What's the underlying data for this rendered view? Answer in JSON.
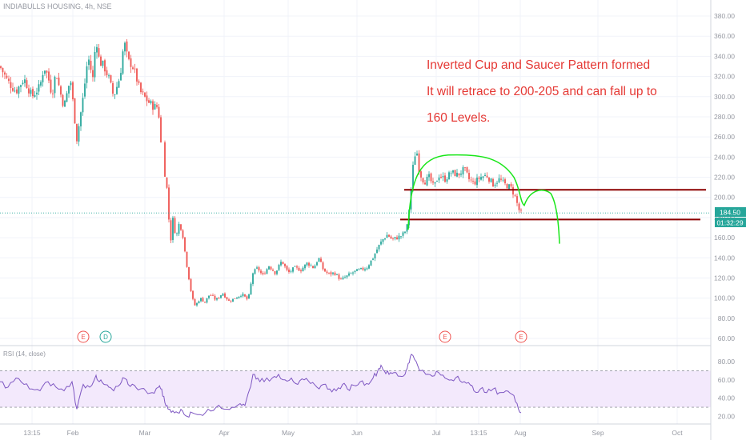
{
  "header": {
    "symbol_label": "INDIABULLS HOUSING, 4h, NSE"
  },
  "rsi_panel": {
    "title": "RSI (14, close)"
  },
  "annotation": {
    "line1": "Inverted Cup and Saucer Pattern formed",
    "line2": "It will retrace to 200-205 and can fall up to",
    "line3": "160 Levels."
  },
  "price_badge": {
    "price": "184.50",
    "countdown": "01:32:29"
  },
  "colors": {
    "up": "#26a69a",
    "down": "#ef5350",
    "annotation": "#e53935",
    "support": "#8b0000",
    "curve": "#19e619",
    "rsi_line": "#7e57c2",
    "rsi_band": "#f3e9fc",
    "badge": "#26a69a",
    "grid": "#f0f3fa",
    "axis_text": "#9598a1"
  },
  "chart_data": [
    {
      "type": "candlestick",
      "ylim": [
        55,
        390
      ],
      "y_ticks": [
        "60.00",
        "80.00",
        "100.00",
        "120.00",
        "140.00",
        "160.00",
        "180.00",
        "200.00",
        "220.00",
        "240.00",
        "260.00",
        "280.00",
        "300.00",
        "320.00",
        "340.00",
        "360.00",
        "380.00"
      ],
      "x_ticks": [
        "13:15",
        "Feb",
        "Mar",
        "Apr",
        "May",
        "Jun",
        "Jul",
        "13:15",
        "Aug",
        "Sep",
        "Oct"
      ],
      "last_price": 184.5,
      "close_path": [
        [
          0,
          330
        ],
        [
          10,
          315
        ],
        [
          20,
          305
        ],
        [
          30,
          318
        ],
        [
          40,
          300
        ],
        [
          50,
          310
        ],
        [
          55,
          330
        ],
        [
          60,
          320
        ],
        [
          65,
          302
        ],
        [
          70,
          325
        ],
        [
          75,
          305
        ],
        [
          80,
          290
        ],
        [
          88,
          318
        ],
        [
          96,
          258
        ],
        [
          104,
          300
        ],
        [
          110,
          340
        ],
        [
          116,
          318
        ],
        [
          120,
          360
        ],
        [
          124,
          335
        ],
        [
          130,
          330
        ],
        [
          136,
          318
        ],
        [
          142,
          300
        ],
        [
          150,
          320
        ],
        [
          155,
          355
        ],
        [
          160,
          335
        ],
        [
          165,
          332
        ],
        [
          170,
          320
        ],
        [
          175,
          305
        ],
        [
          180,
          300
        ],
        [
          185,
          295
        ],
        [
          192,
          290
        ],
        [
          198,
          290
        ],
        [
          200,
          255
        ],
        [
          203,
          252
        ],
        [
          205,
          228
        ],
        [
          208,
          215
        ],
        [
          210,
          190
        ],
        [
          213,
          155
        ],
        [
          216,
          178
        ],
        [
          220,
          160
        ],
        [
          224,
          175
        ],
        [
          228,
          165
        ],
        [
          232,
          140
        ],
        [
          236,
          120
        ],
        [
          240,
          100
        ],
        [
          244,
          92
        ],
        [
          250,
          100
        ],
        [
          256,
          96
        ],
        [
          262,
          104
        ],
        [
          270,
          98
        ],
        [
          278,
          105
        ],
        [
          286,
          97
        ],
        [
          294,
          100
        ],
        [
          302,
          104
        ],
        [
          310,
          98
        ],
        [
          316,
          125
        ],
        [
          322,
          130
        ],
        [
          328,
          122
        ],
        [
          336,
          132
        ],
        [
          344,
          125
        ],
        [
          352,
          137
        ],
        [
          360,
          125
        ],
        [
          368,
          130
        ],
        [
          376,
          128
        ],
        [
          384,
          135
        ],
        [
          392,
          130
        ],
        [
          398,
          140
        ],
        [
          404,
          128
        ],
        [
          410,
          124
        ],
        [
          418,
          125
        ],
        [
          426,
          118
        ],
        [
          434,
          122
        ],
        [
          442,
          126
        ],
        [
          450,
          128
        ],
        [
          458,
          130
        ],
        [
          466,
          140
        ],
        [
          472,
          150
        ],
        [
          478,
          158
        ],
        [
          484,
          163
        ],
        [
          490,
          158
        ],
        [
          496,
          160
        ],
        [
          502,
          162
        ],
        [
          508,
          168
        ],
        [
          512,
          195
        ],
        [
          516,
          230
        ],
        [
          520,
          250
        ],
        [
          524,
          225
        ],
        [
          530,
          215
        ],
        [
          536,
          220
        ],
        [
          542,
          210
        ],
        [
          548,
          222
        ],
        [
          556,
          218
        ],
        [
          564,
          225
        ],
        [
          572,
          222
        ],
        [
          580,
          228
        ],
        [
          586,
          218
        ],
        [
          592,
          214
        ],
        [
          600,
          220
        ],
        [
          608,
          222
        ],
        [
          616,
          213
        ],
        [
          624,
          218
        ],
        [
          632,
          212
        ],
        [
          638,
          210
        ],
        [
          644,
          200
        ],
        [
          648,
          188
        ],
        [
          651,
          184.5
        ]
      ]
    },
    {
      "type": "line",
      "title": "RSI (14, close)",
      "ylim": [
        15,
        90
      ],
      "y_ticks": [
        "20.00",
        "40.00",
        "60.00",
        "80.00"
      ],
      "band": [
        30,
        70
      ],
      "series": [
        {
          "points": [
            [
              0,
              58
            ],
            [
              10,
              52
            ],
            [
              20,
              62
            ],
            [
              30,
              55
            ],
            [
              40,
              50
            ],
            [
              50,
              48
            ],
            [
              60,
              58
            ],
            [
              70,
              52
            ],
            [
              80,
              48
            ],
            [
              90,
              58
            ],
            [
              96,
              28
            ],
            [
              104,
              55
            ],
            [
              112,
              52
            ],
            [
              120,
              65
            ],
            [
              124,
              58
            ],
            [
              130,
              55
            ],
            [
              136,
              52
            ],
            [
              142,
              48
            ],
            [
              150,
              55
            ],
            [
              155,
              62
            ],
            [
              160,
              55
            ],
            [
              168,
              54
            ],
            [
              175,
              50
            ],
            [
              182,
              48
            ],
            [
              190,
              46
            ],
            [
              198,
              52
            ],
            [
              202,
              50
            ],
            [
              206,
              35
            ],
            [
              210,
              28
            ],
            [
              216,
              26
            ],
            [
              222,
              24
            ],
            [
              228,
              26
            ],
            [
              234,
              20
            ],
            [
              240,
              24
            ],
            [
              250,
              22
            ],
            [
              260,
              28
            ],
            [
              270,
              30
            ],
            [
              280,
              28
            ],
            [
              290,
              30
            ],
            [
              300,
              34
            ],
            [
              306,
              32
            ],
            [
              312,
              50
            ],
            [
              316,
              66
            ],
            [
              322,
              62
            ],
            [
              330,
              58
            ],
            [
              340,
              62
            ],
            [
              348,
              66
            ],
            [
              356,
              60
            ],
            [
              364,
              62
            ],
            [
              372,
              55
            ],
            [
              380,
              60
            ],
            [
              388,
              56
            ],
            [
              396,
              52
            ],
            [
              404,
              55
            ],
            [
              412,
              50
            ],
            [
              420,
              48
            ],
            [
              428,
              55
            ],
            [
              434,
              50
            ],
            [
              442,
              54
            ],
            [
              450,
              58
            ],
            [
              458,
              56
            ],
            [
              466,
              62
            ],
            [
              472,
              70
            ],
            [
              476,
              76
            ],
            [
              480,
              70
            ],
            [
              486,
              66
            ],
            [
              492,
              68
            ],
            [
              500,
              64
            ],
            [
              506,
              66
            ],
            [
              510,
              78
            ],
            [
              514,
              88
            ],
            [
              520,
              80
            ],
            [
              526,
              70
            ],
            [
              532,
              66
            ],
            [
              540,
              64
            ],
            [
              548,
              68
            ],
            [
              556,
              62
            ],
            [
              564,
              60
            ],
            [
              572,
              64
            ],
            [
              580,
              58
            ],
            [
              588,
              54
            ],
            [
              592,
              48
            ],
            [
              600,
              50
            ],
            [
              608,
              46
            ],
            [
              616,
              50
            ],
            [
              624,
              46
            ],
            [
              632,
              48
            ],
            [
              640,
              44
            ],
            [
              646,
              34
            ],
            [
              651,
              24
            ]
          ]
        }
      ]
    }
  ]
}
